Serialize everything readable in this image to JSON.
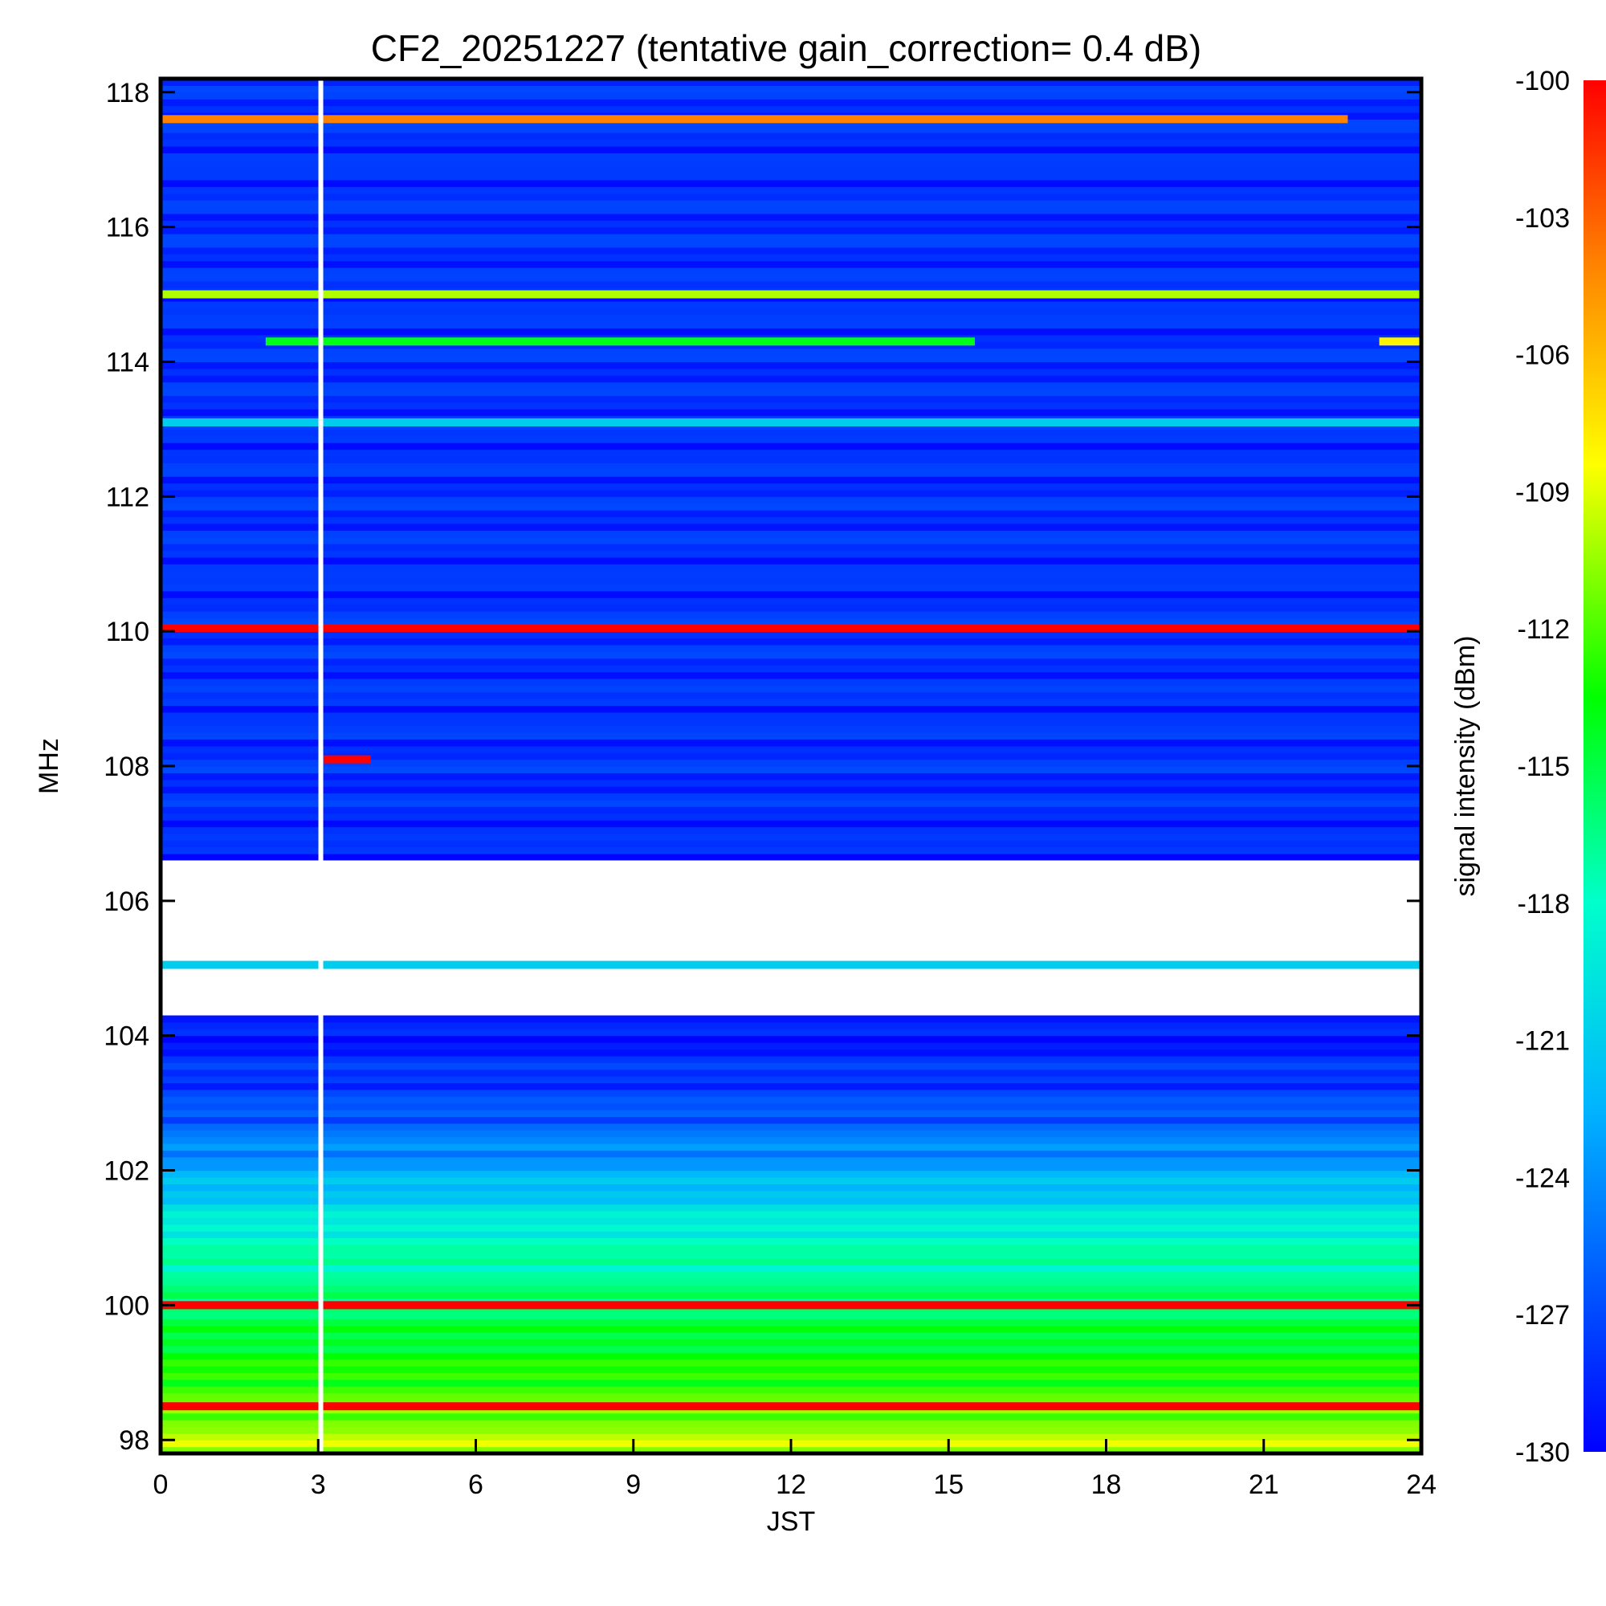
{
  "chart_data": {
    "type": "heatmap",
    "title": "CF2_20251227 (tentative gain_correction=  0.4 dB)",
    "xlabel": "JST",
    "ylabel": "MHz",
    "xlim": [
      0,
      24
    ],
    "ylim": [
      97.8,
      118.2
    ],
    "x_ticks": [
      "0",
      "3",
      "6",
      "9",
      "12",
      "15",
      "18",
      "21",
      "24"
    ],
    "y_ticks": [
      "98",
      "100",
      "102",
      "104",
      "106",
      "108",
      "110",
      "112",
      "114",
      "116",
      "118"
    ],
    "colorbar": {
      "label": "signal intensity (dBm)",
      "range": [
        -130,
        -100
      ],
      "ticks": [
        "-100",
        "-103",
        "-106",
        "-109",
        "-112",
        "-115",
        "-118",
        "-121",
        "-124",
        "-127",
        "-130"
      ]
    },
    "background_intensity": [
      {
        "mhz": 98,
        "dbm": -110
      },
      {
        "mhz": 99,
        "dbm": -113
      },
      {
        "mhz": 100,
        "dbm": -116
      },
      {
        "mhz": 101,
        "dbm": -118
      },
      {
        "mhz": 102,
        "dbm": -123
      },
      {
        "mhz": 103,
        "dbm": -127
      },
      {
        "mhz": 104,
        "dbm": -129
      },
      {
        "mhz": 108,
        "dbm": -128
      },
      {
        "mhz": 118,
        "dbm": -128
      }
    ],
    "gap_band_mhz": [
      104.3,
      106.6
    ],
    "data_gap_jst": 3.05,
    "signals": [
      {
        "mhz": 117.6,
        "dbm": -104,
        "start": 0,
        "end": 22.6
      },
      {
        "mhz": 115.0,
        "dbm": -110,
        "start": 0,
        "end": 24
      },
      {
        "mhz": 114.3,
        "dbm": -114,
        "start": 2,
        "end": 15.5
      },
      {
        "mhz": 114.3,
        "dbm": -108,
        "start": 23.2,
        "end": 24
      },
      {
        "mhz": 113.1,
        "dbm": -121,
        "start": 0,
        "end": 24
      },
      {
        "mhz": 110.05,
        "dbm": -100,
        "start": 0,
        "end": 24
      },
      {
        "mhz": 108.1,
        "dbm": -100,
        "start": 3.1,
        "end": 4
      },
      {
        "mhz": 105.05,
        "dbm": -121,
        "start": 0,
        "end": 24
      },
      {
        "mhz": 100.0,
        "dbm": -100,
        "start": 0,
        "end": 24
      },
      {
        "mhz": 98.5,
        "dbm": -100,
        "start": 0,
        "end": 24
      }
    ]
  }
}
